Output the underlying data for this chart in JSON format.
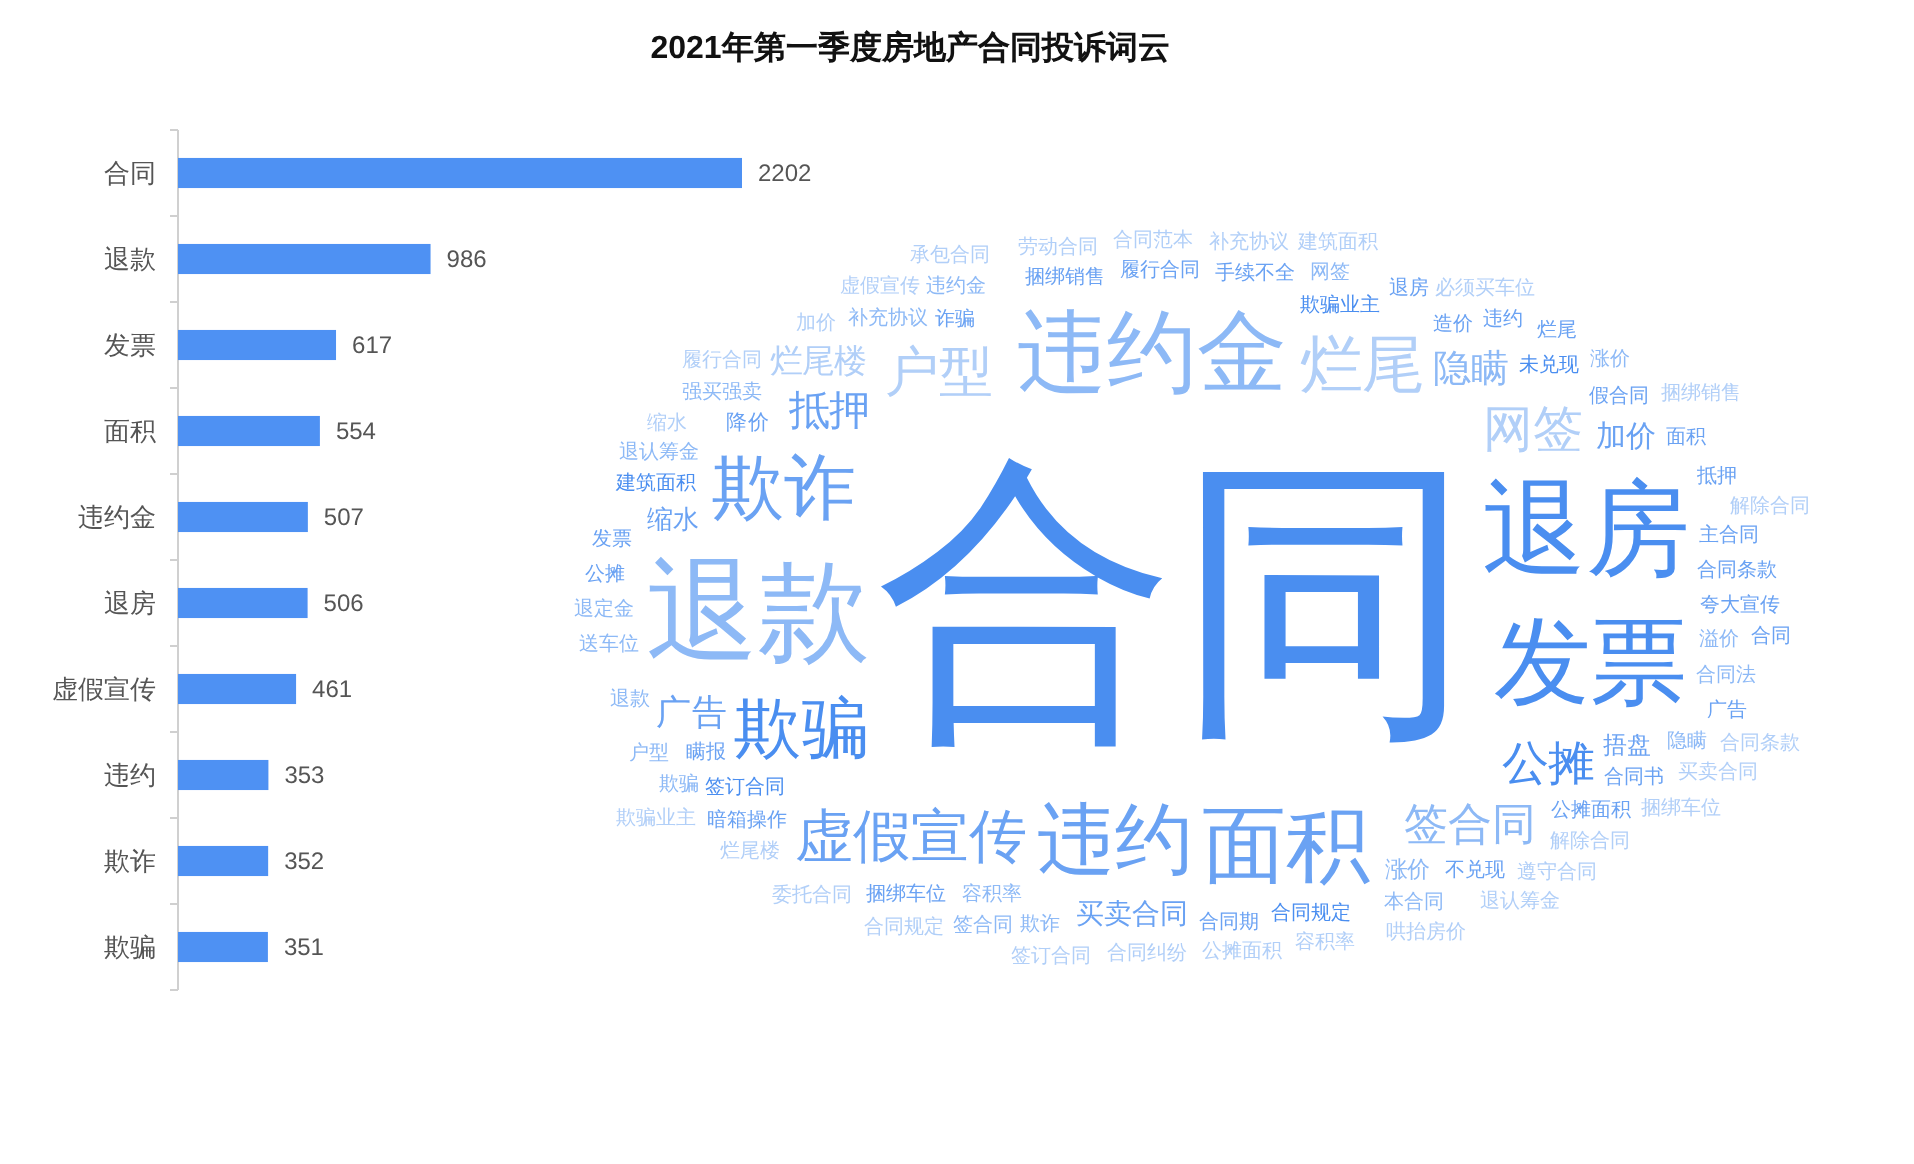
{
  "chart_data": [
    {
      "type": "bar",
      "orientation": "horizontal",
      "categories": [
        "合同",
        "退款",
        "发票",
        "面积",
        "违约金",
        "退房",
        "虚假宣传",
        "违约",
        "欺诈",
        "欺骗"
      ],
      "values": [
        2202,
        986,
        617,
        554,
        507,
        506,
        461,
        353,
        352,
        351
      ],
      "color": "#4e91f3",
      "data_labels": true
    },
    {
      "type": "other",
      "title": "2021年第一季度房地产合同投诉词云",
      "categories": [
        "合同",
        "退款",
        "退房",
        "发票",
        "违约金",
        "面积",
        "违约",
        "欺诈",
        "欺骗",
        "烂尾",
        "虚假宣传",
        "户型",
        "网签",
        "公摊",
        "签合同",
        "抵押",
        "隐瞒",
        "广告",
        "烂尾楼",
        "加价",
        "买卖合同",
        "缩水",
        "捂盘",
        "涨价",
        "降价",
        "诈骗",
        "欺骗业主",
        "容积率",
        "签订合同",
        "未兑现",
        "公摊面积",
        "合同规定",
        "建筑面积",
        "补充协议",
        "捆绑销售",
        "瞒报",
        "造价",
        "履行合同",
        "合同书",
        "不兑现",
        "合同期",
        "手续不全",
        "合同条款",
        "夸大宣传",
        "假合同",
        "主合同",
        "溢价",
        "合同法",
        "捆绑车位",
        "暗箱操作",
        "本合同",
        "送车位",
        "退定金",
        "退认筹金",
        "强买强卖",
        "隐瞒",
        "欺诈",
        "退款",
        "公摊",
        "违约金",
        "发票",
        "网签",
        "退房",
        "违约",
        "面积",
        "解除合同",
        "抵押",
        "广告",
        "签合同",
        "欺骗",
        "户型",
        "缩水",
        "加价",
        "烂尾",
        "涨价",
        "合同",
        "遵守合同",
        "容积率",
        "公摊面积",
        "合同纠纷",
        "履行合同",
        "烂尾楼",
        "虚假宣传",
        "劳动合同",
        "合同范本",
        "必须买车位",
        "补充协议",
        "解除合同",
        "买卖合同",
        "捆绑车位",
        "退认筹金",
        "哄抬房价",
        "签订合同",
        "合同规定",
        "委托合同",
        "承包合同",
        "建筑面积",
        "捆绑销售",
        "合同条款",
        "欺骗业主"
      ],
      "colors": [
        "#4a8ef0",
        "#8db9f6",
        "#4a8ef0",
        "#4a8ef0",
        "#8db9f6",
        "#6aa2f3",
        "#6aa2f3",
        "#6aa2f3",
        "#4a8ef0",
        "#b1cff8",
        "#6aa2f3",
        "#b1cff8",
        "#b1cff8",
        "#4a8ef0",
        "#8db9f6",
        "#6aa2f3",
        "#8db9f6",
        "#6aa2f3",
        "#b1cff8",
        "#6aa2f3",
        "#6aa2f3",
        "#6aa2f3",
        "#6aa2f3",
        "#8db9f6",
        "#6aa2f3",
        "#6aa2f3",
        "#4a8ef0",
        "#8db9f6",
        "#4a8ef0",
        "#4a8ef0",
        "#6aa2f3",
        "#4a8ef0",
        "#4a8ef0",
        "#8db9f6",
        "#6aa2f3",
        "#6aa2f3",
        "#6aa2f3",
        "#6aa2f3",
        "#6aa2f3",
        "#6aa2f3",
        "#6aa2f3",
        "#6aa2f3",
        "#6aa2f3",
        "#6aa2f3",
        "#6aa2f3",
        "#6aa2f3",
        "#8db9f6",
        "#8db9f6",
        "#6aa2f3",
        "#6aa2f3",
        "#8db9f6",
        "#8db9f6",
        "#8db9f6",
        "#8db9f6",
        "#8db9f6",
        "#8db9f6",
        "#8db9f6",
        "#8db9f6",
        "#6aa2f3",
        "#8db9f6",
        "#6aa2f3",
        "#8db9f6",
        "#6aa2f3",
        "#6aa2f3",
        "#6aa2f3",
        "#b1cff8",
        "#6aa2f3",
        "#6aa2f3",
        "#8db9f6",
        "#8db9f6",
        "#8db9f6",
        "#b1cff8",
        "#b1cff8",
        "#6aa2f3",
        "#8db9f6",
        "#6aa2f3",
        "#b1cff8",
        "#b1cff8",
        "#b1cff8",
        "#b1cff8",
        "#b1cff8",
        "#b1cff8",
        "#b1cff8",
        "#b1cff8",
        "#b1cff8",
        "#b1cff8",
        "#b1cff8",
        "#b1cff8",
        "#b1cff8",
        "#b1cff8",
        "#b1cff8",
        "#b1cff8",
        "#b1cff8",
        "#b1cff8",
        "#b1cff8",
        "#b1cff8",
        "#b1cff8",
        "#b1cff8",
        "#b1cff8",
        "#b1cff8"
      ]
    }
  ]
}
